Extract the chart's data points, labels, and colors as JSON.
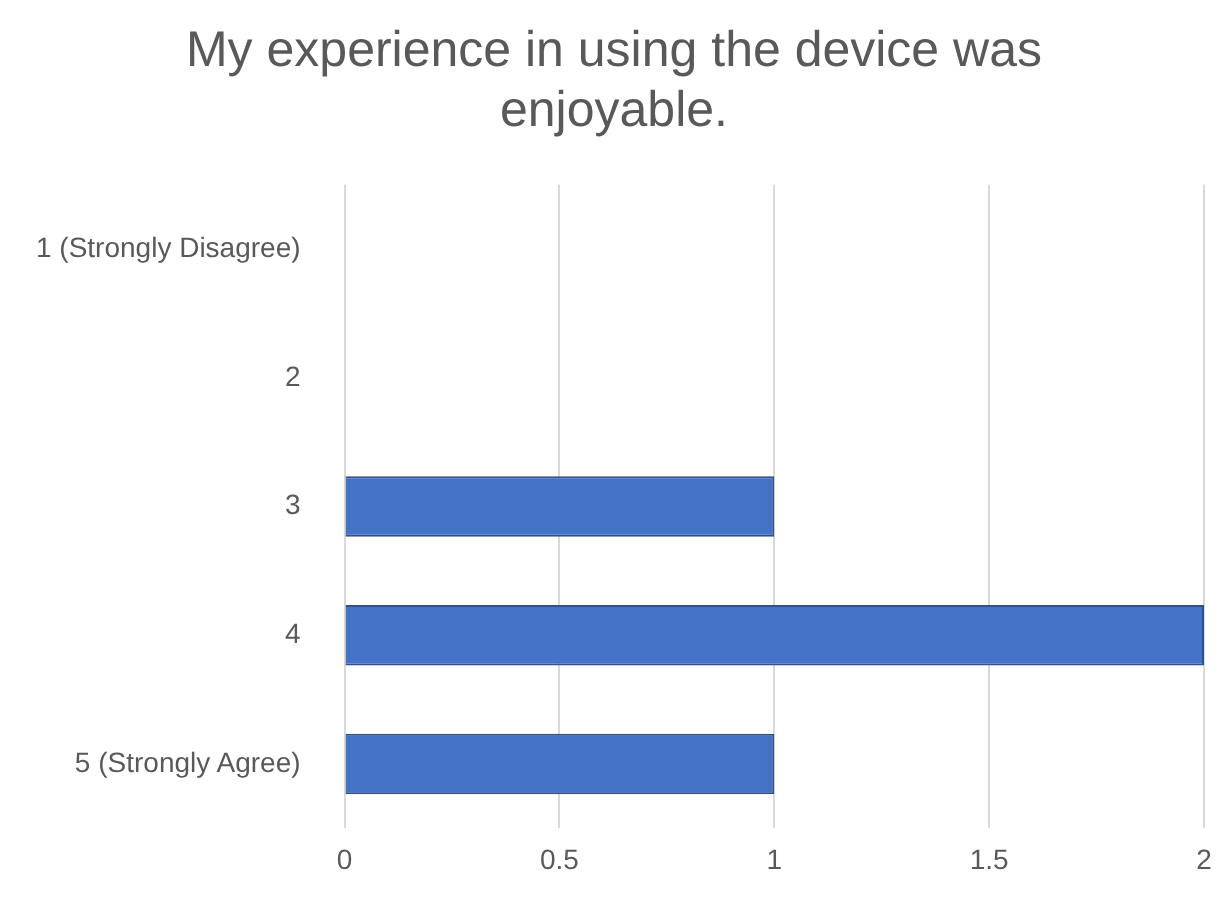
{
  "chart_data": {
    "type": "bar",
    "orientation": "horizontal",
    "title": "My experience in using the device was enjoyable.",
    "categories": [
      "1 (Strongly Disagree)",
      "2",
      "3",
      "4",
      "5 (Strongly Agree)"
    ],
    "values": [
      0,
      0,
      1,
      2,
      1
    ],
    "color": "#4472c4",
    "xlim": [
      0,
      2
    ],
    "xticks": [
      0,
      0.5,
      1,
      1.5,
      2
    ],
    "grid": "x",
    "legend": false
  }
}
